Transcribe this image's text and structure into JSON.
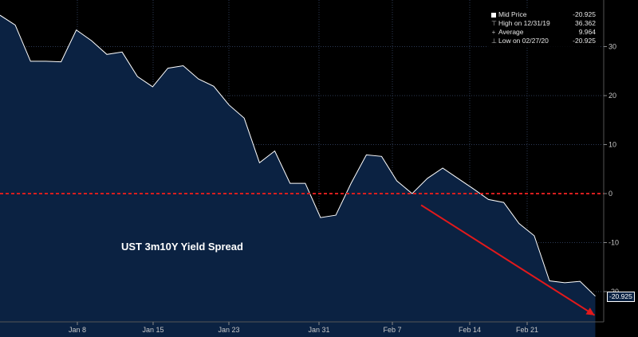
{
  "chart_data": {
    "type": "area",
    "title": "",
    "annotation": "UST 3m10Y Yield Spread",
    "x_tick_labels": [
      "Jan 8",
      "Jan 15",
      "Jan 23",
      "Jan 31",
      "Feb 7",
      "Feb 14",
      "Feb 21"
    ],
    "y_ticks": [
      30,
      20,
      10,
      0,
      -10,
      -20
    ],
    "ylim": [
      -26.5,
      38.5
    ],
    "reference_line": {
      "value": 0,
      "style": "dashed",
      "color": "#d81e1e"
    },
    "series": [
      {
        "name": "Mid Price",
        "values": [
          36.4,
          34.4,
          27.0,
          27.0,
          26.9,
          33.4,
          31.2,
          28.4,
          28.9,
          23.9,
          21.8,
          25.6,
          26.1,
          23.4,
          21.9,
          18.1,
          15.4,
          6.3,
          8.7,
          2.1,
          2.1,
          -4.9,
          -4.4,
          2.1,
          7.9,
          7.6,
          2.6,
          0.0,
          3.1,
          5.2,
          3.1,
          1.0,
          -1.2,
          -1.8,
          -6.1,
          -8.6,
          -17.8,
          -18.2,
          -17.9,
          -20.925
        ]
      }
    ],
    "legend": {
      "position": "top-right",
      "rows": [
        {
          "label": "Mid Price",
          "value": "-20.925"
        },
        {
          "label": "High on 12/31/19",
          "value": "36.362"
        },
        {
          "label": "Average",
          "value": "9.964"
        },
        {
          "label": "Low on 02/27/20",
          "value": "-20.925"
        }
      ]
    },
    "last_value_label": "-20.925",
    "trend_arrow": {
      "from_index": 29,
      "from_value": -3.0,
      "to_index": 40,
      "to_value": -24.5,
      "color": "#e3191b"
    },
    "colors": {
      "background": "#000000",
      "area_fill": "#0b2242",
      "line": "#ffffff",
      "grid": "#2c3a55",
      "text": "#c8c8c8"
    }
  }
}
